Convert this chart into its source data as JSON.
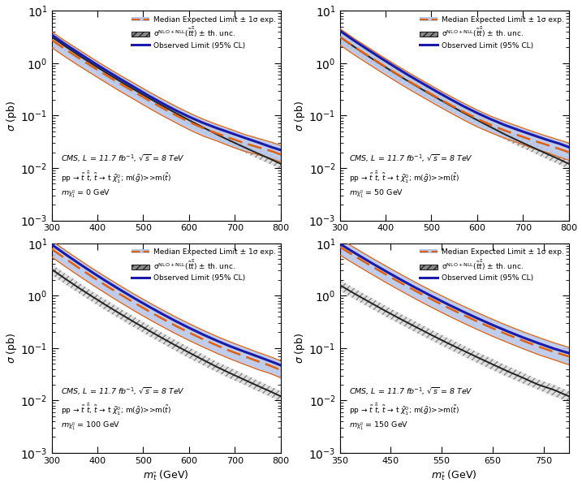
{
  "x_common": [
    300,
    330,
    360,
    390,
    420,
    450,
    480,
    510,
    540,
    570,
    600,
    630,
    660,
    690,
    720,
    750,
    780,
    800
  ],
  "x_150": [
    350,
    380,
    410,
    440,
    470,
    500,
    530,
    560,
    590,
    620,
    650,
    680,
    710,
    740,
    770,
    800
  ],
  "theory_central_common": [
    3.2,
    2.1,
    1.4,
    0.95,
    0.65,
    0.45,
    0.315,
    0.222,
    0.158,
    0.113,
    0.082,
    0.06,
    0.044,
    0.033,
    0.025,
    0.019,
    0.0145,
    0.012
  ],
  "theory_up_common": [
    4.0,
    2.65,
    1.76,
    1.19,
    0.82,
    0.57,
    0.398,
    0.28,
    0.199,
    0.143,
    0.103,
    0.076,
    0.055,
    0.042,
    0.032,
    0.024,
    0.0183,
    0.015
  ],
  "theory_dn_common": [
    2.5,
    1.65,
    1.1,
    0.75,
    0.51,
    0.355,
    0.248,
    0.175,
    0.124,
    0.089,
    0.064,
    0.047,
    0.035,
    0.026,
    0.02,
    0.015,
    0.0115,
    0.0095
  ],
  "theory_central_150": [
    1.6,
    1.08,
    0.74,
    0.51,
    0.356,
    0.251,
    0.178,
    0.127,
    0.092,
    0.067,
    0.049,
    0.036,
    0.027,
    0.02,
    0.016,
    0.012
  ],
  "theory_up_150": [
    2.02,
    1.36,
    0.93,
    0.64,
    0.449,
    0.316,
    0.224,
    0.16,
    0.116,
    0.084,
    0.062,
    0.045,
    0.034,
    0.025,
    0.02,
    0.015
  ],
  "theory_dn_150": [
    1.26,
    0.85,
    0.58,
    0.4,
    0.28,
    0.197,
    0.14,
    0.1,
    0.072,
    0.052,
    0.038,
    0.028,
    0.021,
    0.016,
    0.012,
    0.0095
  ],
  "obs_0": [
    3.5,
    2.3,
    1.55,
    1.05,
    0.72,
    0.5,
    0.35,
    0.245,
    0.175,
    0.127,
    0.095,
    0.073,
    0.058,
    0.047,
    0.038,
    0.031,
    0.025,
    0.022
  ],
  "exp_0": [
    2.8,
    1.85,
    1.25,
    0.85,
    0.585,
    0.405,
    0.285,
    0.2,
    0.143,
    0.103,
    0.076,
    0.058,
    0.046,
    0.037,
    0.03,
    0.025,
    0.021,
    0.018
  ],
  "exp_up_0": [
    4.0,
    2.65,
    1.8,
    1.22,
    0.84,
    0.585,
    0.415,
    0.292,
    0.21,
    0.152,
    0.113,
    0.086,
    0.068,
    0.055,
    0.044,
    0.037,
    0.031,
    0.027
  ],
  "exp_dn_0": [
    2.0,
    1.32,
    0.89,
    0.61,
    0.42,
    0.29,
    0.204,
    0.143,
    0.102,
    0.074,
    0.054,
    0.041,
    0.033,
    0.026,
    0.021,
    0.018,
    0.015,
    0.013
  ],
  "obs_50": [
    4.2,
    2.75,
    1.85,
    1.25,
    0.855,
    0.59,
    0.415,
    0.293,
    0.209,
    0.151,
    0.112,
    0.085,
    0.066,
    0.053,
    0.043,
    0.035,
    0.029,
    0.025
  ],
  "exp_50": [
    3.2,
    2.1,
    1.42,
    0.965,
    0.66,
    0.458,
    0.323,
    0.228,
    0.163,
    0.118,
    0.087,
    0.066,
    0.052,
    0.042,
    0.034,
    0.028,
    0.023,
    0.02
  ],
  "exp_up_50": [
    4.6,
    3.02,
    2.05,
    1.39,
    0.955,
    0.663,
    0.469,
    0.332,
    0.238,
    0.173,
    0.128,
    0.097,
    0.077,
    0.062,
    0.05,
    0.041,
    0.034,
    0.03
  ],
  "exp_dn_50": [
    2.25,
    1.48,
    1.0,
    0.68,
    0.466,
    0.323,
    0.228,
    0.161,
    0.115,
    0.083,
    0.061,
    0.047,
    0.037,
    0.03,
    0.024,
    0.02,
    0.016,
    0.014
  ],
  "obs_100": [
    9.5,
    6.2,
    4.1,
    2.75,
    1.87,
    1.29,
    0.9,
    0.636,
    0.455,
    0.33,
    0.243,
    0.182,
    0.139,
    0.108,
    0.086,
    0.069,
    0.055,
    0.047
  ],
  "exp_100": [
    7.8,
    5.1,
    3.37,
    2.26,
    1.535,
    1.057,
    0.736,
    0.52,
    0.371,
    0.268,
    0.198,
    0.148,
    0.113,
    0.088,
    0.07,
    0.056,
    0.045,
    0.038
  ],
  "exp_up_100": [
    11.2,
    7.35,
    4.87,
    3.27,
    2.23,
    1.54,
    1.075,
    0.761,
    0.546,
    0.396,
    0.293,
    0.22,
    0.168,
    0.131,
    0.104,
    0.083,
    0.067,
    0.057
  ],
  "exp_dn_100": [
    5.5,
    3.6,
    2.38,
    1.595,
    1.082,
    0.744,
    0.517,
    0.365,
    0.261,
    0.189,
    0.14,
    0.105,
    0.08,
    0.062,
    0.049,
    0.039,
    0.032,
    0.027
  ],
  "obs_150": [
    9.8,
    6.5,
    4.35,
    2.95,
    2.02,
    1.4,
    0.985,
    0.703,
    0.508,
    0.372,
    0.276,
    0.208,
    0.159,
    0.124,
    0.098,
    0.08
  ],
  "exp_150": [
    8.5,
    5.65,
    3.78,
    2.56,
    1.755,
    1.215,
    0.854,
    0.609,
    0.44,
    0.322,
    0.239,
    0.18,
    0.138,
    0.107,
    0.085,
    0.069
  ],
  "exp_up_150": [
    12.2,
    8.13,
    5.46,
    3.71,
    2.55,
    1.77,
    1.248,
    0.893,
    0.648,
    0.476,
    0.354,
    0.267,
    0.205,
    0.16,
    0.127,
    0.103
  ],
  "exp_dn_150": [
    5.98,
    3.97,
    2.66,
    1.8,
    1.234,
    0.854,
    0.6,
    0.428,
    0.309,
    0.226,
    0.168,
    0.127,
    0.097,
    0.075,
    0.06,
    0.048
  ],
  "colors": {
    "obs": "#1a1aaa",
    "exp": "#e06010",
    "exp_band": "#b8c8e8",
    "theory": "#222222",
    "theory_band_fill": "#888888",
    "theory_band_edge": "#444444"
  },
  "ylim": [
    0.001,
    10
  ],
  "legend_exp": "Median Expected Limit ± 1σ exp.",
  "legend_theory": "σ$^{\\mathregular{NLO+NLL}}$($\\tilde{t}\\bar{\\tilde{t}}$) ± th. unc.",
  "legend_obs": "Observed Limit (95% CL)",
  "cms_line1": "CMS, L = 11.7 fb$^{-1}$, $\\sqrt{s}$ = 8 TeV",
  "cms_line2": "pp → $\\tilde{t}$ $\\bar{\\tilde{t}}$, $\\tilde{t}$ → t $\\tilde{\\chi}_{1}^{0}$; m($\\tilde{g}$)>>m($\\tilde{t}$)",
  "mLSP_values": [
    "0",
    "50",
    "100",
    "150"
  ]
}
